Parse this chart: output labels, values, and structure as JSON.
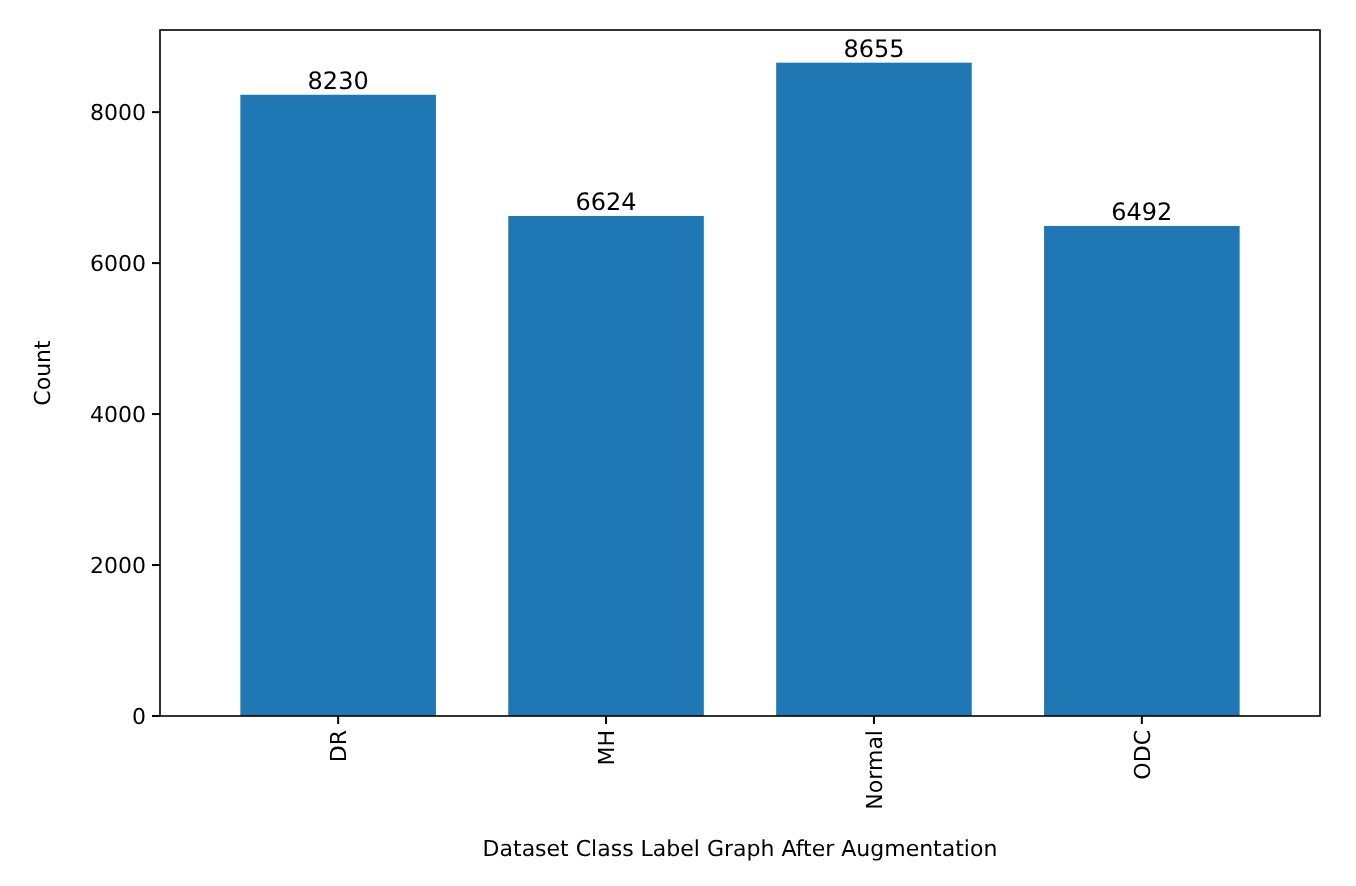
{
  "chart_data": {
    "type": "bar",
    "xlabel": "Dataset Class Label Graph After Augmentation",
    "ylabel": "Count",
    "categories": [
      "DR",
      "MH",
      "Normal",
      "ODC"
    ],
    "values": [
      8230,
      6624,
      8655,
      6492
    ],
    "color": "#1f77b4",
    "ylim": [
      0,
      9088
    ],
    "yticks": [
      0,
      2000,
      4000,
      6000,
      8000
    ],
    "data_labels": true
  }
}
